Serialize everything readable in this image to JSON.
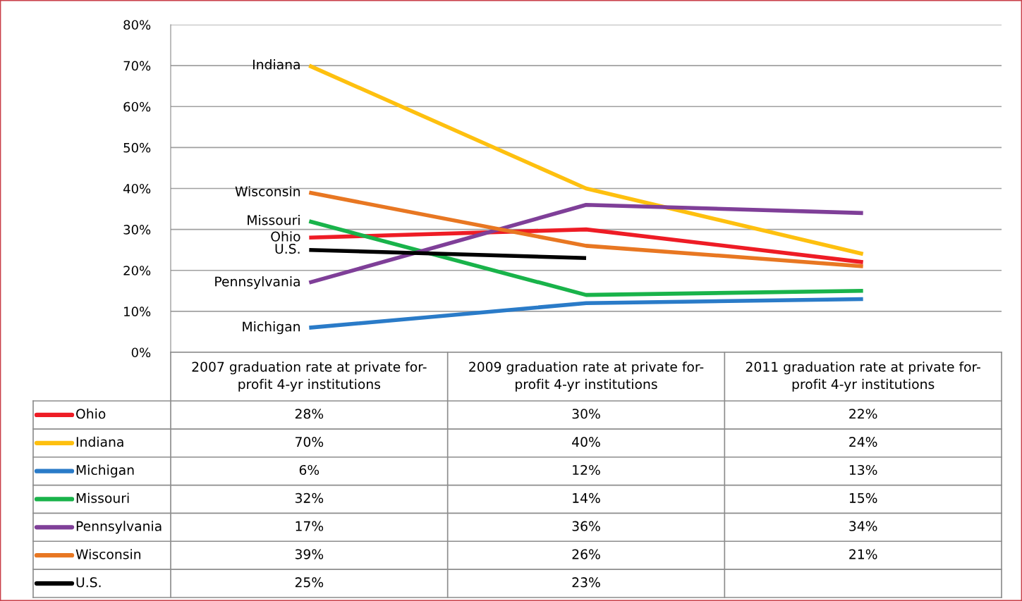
{
  "chart_data": {
    "type": "line",
    "categories": [
      "2007 graduation rate at private for-\nprofit 4-yr institutions",
      "2009 graduation rate at private for-\nprofit 4-yr institutions",
      "2011 graduation rate at private for-\nprofit 4-yr institutions"
    ],
    "ylim": [
      0,
      80
    ],
    "yticks": [
      {
        "value": 0,
        "label": "0%"
      },
      {
        "value": 10,
        "label": "10%"
      },
      {
        "value": 20,
        "label": "20%"
      },
      {
        "value": 30,
        "label": "30%"
      },
      {
        "value": 40,
        "label": "40%"
      },
      {
        "value": 50,
        "label": "50%"
      },
      {
        "value": 60,
        "label": "60%"
      },
      {
        "value": 70,
        "label": "70%"
      },
      {
        "value": 80,
        "label": "80%"
      }
    ],
    "grid": "y",
    "legend": "bottom",
    "marker": "none",
    "line_style": "solid",
    "series": [
      {
        "name": "Ohio",
        "color": "#ee1c25",
        "values": [
          28,
          30,
          22
        ],
        "value_labels": [
          "28%",
          "30%",
          "22%"
        ]
      },
      {
        "name": "Indiana",
        "color": "#fec00f",
        "values": [
          70,
          40,
          24
        ],
        "value_labels": [
          "70%",
          "40%",
          "24%"
        ]
      },
      {
        "name": "Michigan",
        "color": "#2a7bc8",
        "values": [
          6,
          12,
          13
        ],
        "value_labels": [
          "6%",
          "12%",
          "13%"
        ]
      },
      {
        "name": "Missouri",
        "color": "#19b34a",
        "values": [
          32,
          14,
          15
        ],
        "value_labels": [
          "32%",
          "14%",
          "15%"
        ]
      },
      {
        "name": "Pennsylvania",
        "color": "#7f3f98",
        "values": [
          17,
          36,
          34
        ],
        "value_labels": [
          "17%",
          "36%",
          "34%"
        ]
      },
      {
        "name": "Wisconsin",
        "color": "#e87722",
        "values": [
          39,
          26,
          21
        ],
        "value_labels": [
          "39%",
          "26%",
          "21%"
        ]
      },
      {
        "name": "U.S.",
        "color": "#000000",
        "values": [
          25,
          23,
          null
        ],
        "value_labels": [
          "25%",
          "23%",
          null
        ]
      }
    ]
  }
}
